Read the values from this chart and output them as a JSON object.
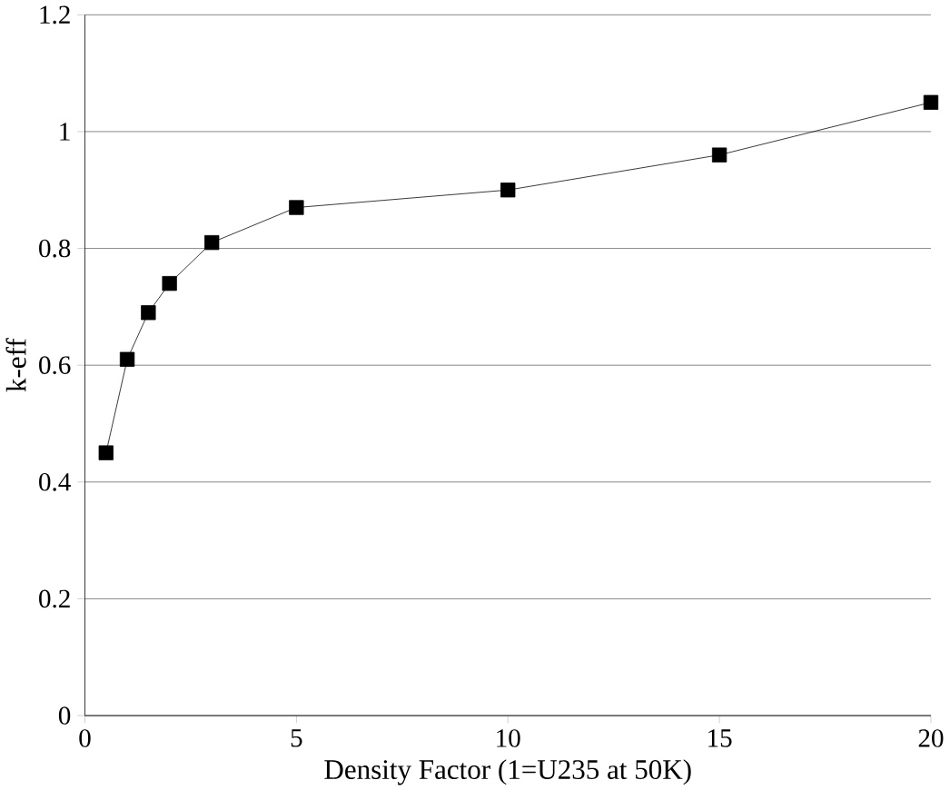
{
  "chart_data": {
    "type": "line",
    "xlabel": "Density Factor (1=U235 at 50K)",
    "ylabel": "k-eff",
    "x": [
      0.5,
      1,
      1.5,
      2,
      3,
      5,
      10,
      15,
      20
    ],
    "values": [
      0.45,
      0.61,
      0.69,
      0.74,
      0.81,
      0.87,
      0.9,
      0.96,
      1.05
    ],
    "color": "#000000",
    "marker": "square",
    "line_style": "solid",
    "xlim": [
      0,
      20
    ],
    "xticks": [
      0,
      5,
      10,
      15,
      20
    ],
    "ylim": [
      0,
      1.2
    ],
    "yticks": [
      0,
      0.2,
      0.4,
      0.6,
      0.8,
      1,
      1.2
    ],
    "grid": "y"
  }
}
